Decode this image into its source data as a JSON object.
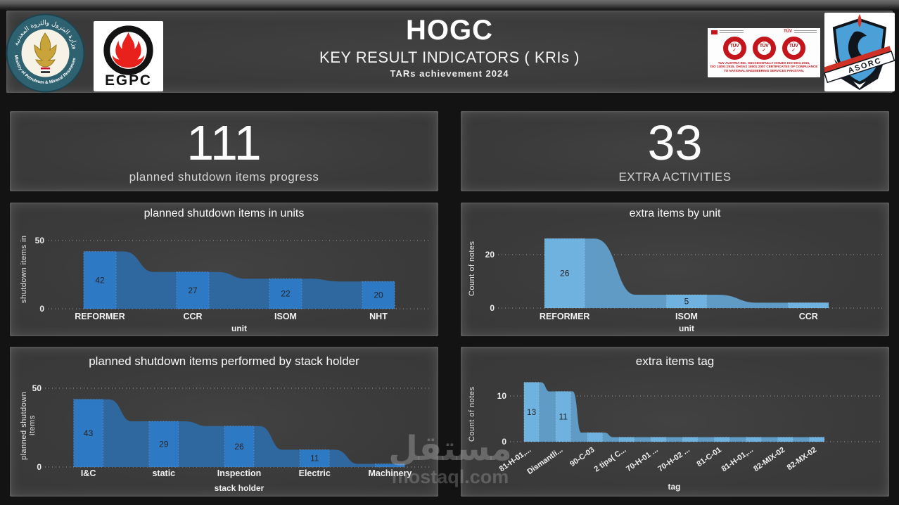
{
  "header": {
    "title": "HOGC",
    "subtitle": "KEY RESULT INDICATORS ( KRIs )",
    "tagline": "TARs  achievement  2024",
    "logos": {
      "ministry": {
        "ring_text_ar": "وزارة البترول والثروة المعدنية",
        "ring_text_en": "Ministry of Petroleum & Mineral Resources"
      },
      "egpc": {
        "label": "EGPC"
      },
      "tuv": {
        "seal_text": "TÜV",
        "seal_check": "✓",
        "caption_lines": [
          "TUV AUSTRIA INC. SUCCESSFULLY ISSUES ISO 9001:2015,",
          "ISO 14001:2015, OHSAS 18001:2007 CERTIFICATES OF COMPLIANCE",
          "TO NATIONAL ENGINEERING SERVICES PAKISTAN."
        ]
      },
      "asorc": {
        "label": "ASORC"
      }
    }
  },
  "kpis": [
    {
      "value": "111",
      "label": "planned shutdown items progress"
    },
    {
      "value": "33",
      "label": "EXTRA ACTIVITIES"
    }
  ],
  "colors": {
    "left_bar": "#2e79c4",
    "left_connector": "#2f689f",
    "right_bar": "#6fb2e0",
    "right_connector": "#5f9bc4",
    "value_label": "#262626",
    "grid": "rgba(255,255,255,0.5)"
  },
  "chart_data": [
    {
      "type": "bar",
      "title": "planned shutdown items in units",
      "xlabel": "unit",
      "ylabel": "shutdown items in",
      "categories": [
        "REFORMER",
        "CCR",
        "ISOM",
        "NHT"
      ],
      "values": [
        42,
        27,
        22,
        20
      ],
      "yticks": [
        0,
        50
      ],
      "ylim": [
        0,
        62
      ],
      "grid": "dotted",
      "legend": "none",
      "bar_color": "#2e79c4",
      "connector_color": "#2f689f"
    },
    {
      "type": "bar",
      "title": "extra items by unit",
      "xlabel": "unit",
      "ylabel": "Count of notes",
      "categories": [
        "REFORMER",
        "ISOM",
        "CCR"
      ],
      "values": [
        26,
        5,
        2
      ],
      "yticks": [
        0,
        20
      ],
      "ylim": [
        0,
        28
      ],
      "grid": "dotted",
      "legend": "none",
      "bar_color": "#6fb2e0",
      "connector_color": "#5f9bc4"
    },
    {
      "type": "bar",
      "title": "planned shutdown items performed by stack holder",
      "xlabel": "stack holder",
      "ylabel": "planned shutdown items",
      "categories": [
        "I&C",
        "static",
        "Inspection",
        "Electric",
        "Machinery"
      ],
      "values": [
        43,
        29,
        26,
        11,
        2
      ],
      "yticks": [
        0,
        50
      ],
      "ylim": [
        0,
        53
      ],
      "grid": "dotted",
      "legend": "none",
      "bar_color": "#2e79c4",
      "connector_color": "#2f689f"
    },
    {
      "type": "bar",
      "title": "extra items tag",
      "xlabel": "tag",
      "ylabel": "Count of notes",
      "categories": [
        "81-H-01,...",
        "Dismantli...",
        "90-C-03",
        "2 tips( C...",
        "70-H-01 ...",
        "70-H-02 ...",
        "81-C-01",
        "81-H-01,...",
        "82-MIX-02",
        "82-MX-02"
      ],
      "values": [
        13,
        11,
        2,
        1,
        1,
        1,
        1,
        1,
        1,
        1
      ],
      "yticks": [
        0,
        10
      ],
      "ylim": [
        0,
        14
      ],
      "grid": "dotted",
      "legend": "none",
      "bar_color": "#6fb2e0",
      "connector_color": "#5f9bc4"
    }
  ],
  "watermark": {
    "text_ar": "مستقل",
    "text_en": "mostaql.com"
  }
}
